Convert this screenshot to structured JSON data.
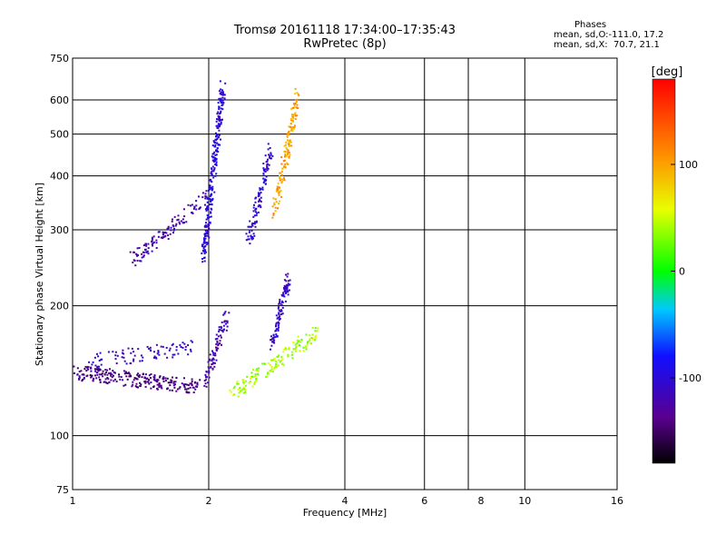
{
  "header": {
    "title": "Tromsø 20161118 17:34:00–17:35:43",
    "subtitle": "RwPretec (8p)"
  },
  "stats": {
    "heading": "Phases",
    "line1": "mean, sd,O:-111.0, 17.2",
    "line2": "mean, sd,X:  70.7, 21.1"
  },
  "chart_data": {
    "type": "scatter",
    "title": "Tromsø 20161118 17:34:00–17:35:43",
    "subtitle": "RwPretec (8p)",
    "xlabel": "Frequency [MHz]",
    "ylabel": "Stationary phase Virtual Height [km]",
    "x_scale": "log",
    "y_scale": "log",
    "xlim": [
      1,
      16
    ],
    "ylim": [
      75,
      750
    ],
    "x_ticks": [
      1,
      2,
      4,
      6,
      8,
      10,
      16
    ],
    "x_tick_labels": [
      "1",
      "2",
      "4",
      "6",
      "8",
      "10",
      "16"
    ],
    "y_ticks": [
      75,
      100,
      200,
      300,
      400,
      500,
      600,
      750
    ],
    "y_tick_labels": [
      "75",
      "100",
      "200",
      "300",
      "400",
      "500",
      "600",
      "750"
    ],
    "grid_x": [
      2,
      4,
      6,
      7.5,
      10
    ],
    "grid_y": [
      100,
      200,
      300,
      400,
      500,
      600
    ],
    "colorbar": {
      "label": "[deg]",
      "range": [
        -180,
        180
      ],
      "ticks": [
        100,
        0,
        -100
      ],
      "tick_labels": [
        "100",
        "0",
        "-100"
      ]
    },
    "series": [
      {
        "trace": "lower-band",
        "x_start": 1.0,
        "x_end": 1.9,
        "h_start": 140,
        "h_end": 130,
        "phase": -140,
        "count": 260
      },
      {
        "trace": "lower-band-upper",
        "x_start": 1.05,
        "x_end": 1.85,
        "h_start": 148,
        "h_end": 160,
        "phase": -110,
        "count": 90
      },
      {
        "trace": "vertical-2mhz-low",
        "x_start": 1.95,
        "x_end": 2.2,
        "h_start": 130,
        "h_end": 190,
        "phase": -120,
        "count": 90
      },
      {
        "trace": "green-cusp",
        "x_start": 2.25,
        "x_end": 3.5,
        "h_start": 125,
        "h_end": 175,
        "phase": 40,
        "count": 150
      },
      {
        "trace": "blue-cluster-2.9",
        "x_start": 2.75,
        "x_end": 3.0,
        "h_start": 160,
        "h_end": 230,
        "phase": -110,
        "count": 110
      },
      {
        "trace": "upper-blue-rise",
        "x_start": 1.35,
        "x_end": 2.0,
        "h_start": 255,
        "h_end": 360,
        "phase": -120,
        "count": 120
      },
      {
        "trace": "vertical-2.1mhz",
        "x_start": 1.95,
        "x_end": 2.15,
        "h_start": 260,
        "h_end": 640,
        "phase": -100,
        "count": 260
      },
      {
        "trace": "vertical-2.5mhz",
        "x_start": 2.45,
        "x_end": 2.75,
        "h_start": 280,
        "h_end": 470,
        "phase": -105,
        "count": 110
      },
      {
        "trace": "yellow-cusp",
        "x_start": 2.8,
        "x_end": 3.15,
        "h_start": 330,
        "h_end": 620,
        "phase": 100,
        "count": 150
      }
    ]
  }
}
